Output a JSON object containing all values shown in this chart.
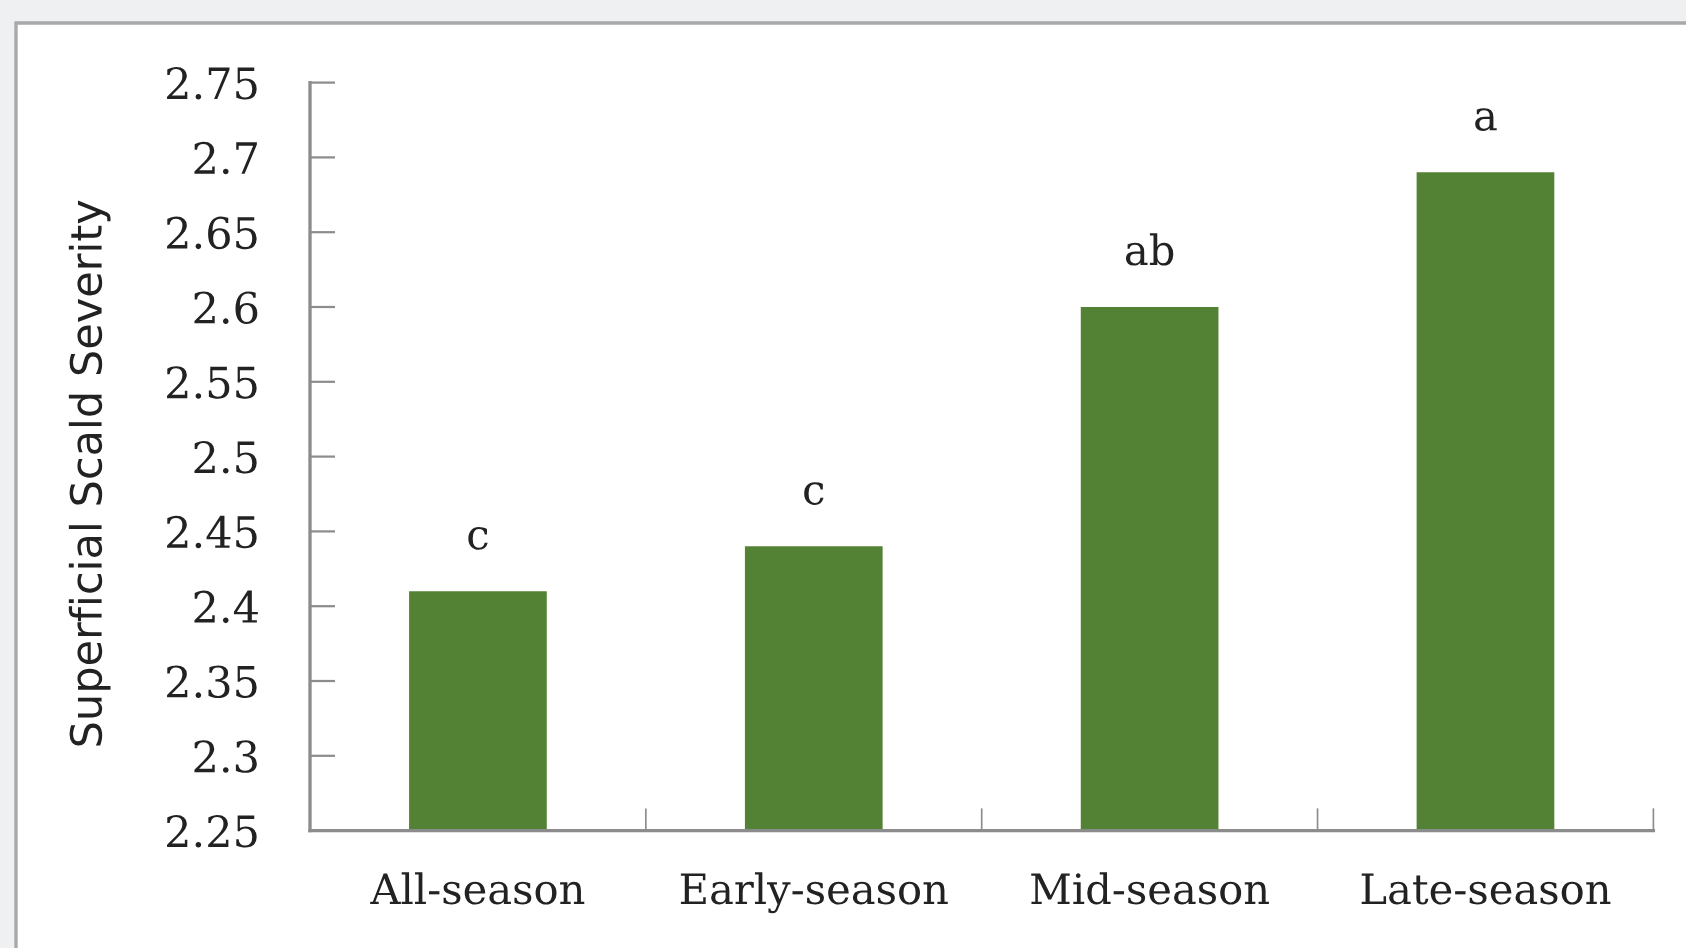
{
  "chart_data": {
    "type": "bar",
    "ylabel": "Superficial Scald Severity",
    "categories": [
      "All-season",
      "Early-season",
      "Mid-season",
      "Late-season"
    ],
    "values": [
      2.41,
      2.44,
      2.6,
      2.69
    ],
    "color": "#548235",
    "ylim": [
      2.25,
      2.75
    ],
    "yticks": [
      2.25,
      2.3,
      2.35,
      2.4,
      2.45,
      2.5,
      2.55,
      2.6,
      2.65,
      2.7,
      2.75
    ],
    "annotations": [
      {
        "text": "c",
        "x": "All-season",
        "y": 2.41
      },
      {
        "text": "c",
        "x": "Early-season",
        "y": 2.44
      },
      {
        "text": "ab",
        "x": "Mid-season",
        "y": 2.6
      },
      {
        "text": "a",
        "x": "Late-season",
        "y": 2.69
      }
    ]
  }
}
